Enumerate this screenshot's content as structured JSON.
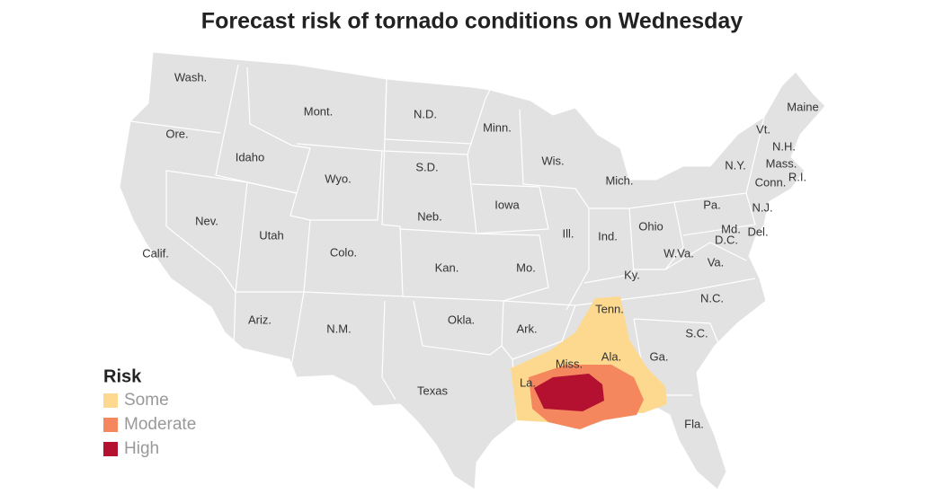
{
  "title": "Forecast risk of tornado conditions on Wednesday",
  "legend": {
    "title": "Risk",
    "items": [
      {
        "label": "Some",
        "color": "#fdd98f"
      },
      {
        "label": "Moderate",
        "color": "#f4875d"
      },
      {
        "label": "High",
        "color": "#b3112f"
      }
    ]
  },
  "states": [
    "Wash.",
    "Ore.",
    "Calif.",
    "Idaho",
    "Nev.",
    "Mont.",
    "Wyo.",
    "Utah",
    "Ariz.",
    "Colo.",
    "N.M.",
    "N.D.",
    "S.D.",
    "Neb.",
    "Kan.",
    "Okla.",
    "Texas",
    "Minn.",
    "Iowa",
    "Mo.",
    "Ark.",
    "La.",
    "Wis.",
    "Ill.",
    "Mich.",
    "Ind.",
    "Ohio",
    "Ky.",
    "Tenn.",
    "Miss.",
    "Ala.",
    "Ga.",
    "Fla.",
    "S.C.",
    "N.C.",
    "Va.",
    "W.Va.",
    "Pa.",
    "N.Y.",
    "Md.",
    "D.C.",
    "Del.",
    "N.J.",
    "Conn.",
    "R.I.",
    "Mass.",
    "Vt.",
    "N.H.",
    "Maine"
  ]
}
